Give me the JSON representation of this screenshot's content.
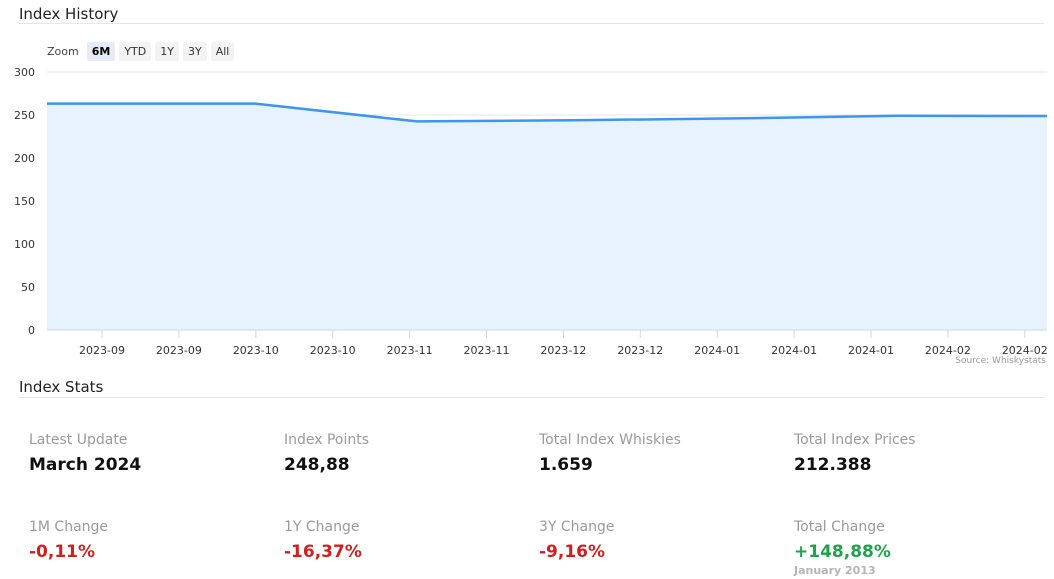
{
  "history": {
    "title": "Index History",
    "zoom_label": "Zoom",
    "zoom_buttons": [
      "6M",
      "YTD",
      "1Y",
      "3Y",
      "All"
    ],
    "zoom_active": "6M",
    "source": "Source: Whiskystats"
  },
  "chart_data": {
    "type": "area",
    "title": "",
    "xlabel": "",
    "ylabel": "",
    "ylim": [
      0,
      300
    ],
    "yticks": [
      0,
      50,
      100,
      150,
      200,
      250,
      300
    ],
    "grid": true,
    "line_color": "#3d95f0",
    "fill_color": "#e8f2fd",
    "x_tick_labels": [
      "2023-09",
      "2023-09",
      "2023-10",
      "2023-10",
      "2023-11",
      "2023-11",
      "2023-12",
      "2023-12",
      "2024-01",
      "2024-01",
      "2024-01",
      "2024-02",
      "2024-02"
    ],
    "x": [
      "2023-08-31",
      "2023-09-30",
      "2023-10-31",
      "2023-11-30",
      "2023-12-31",
      "2024-01-31",
      "2024-02-29"
    ],
    "values": [
      263.2,
      263.2,
      242.5,
      243.8,
      246.0,
      249.1,
      248.88
    ]
  },
  "stats": {
    "title": "Index Stats",
    "items": [
      {
        "label": "Latest Update",
        "value": "March 2024",
        "tone": ""
      },
      {
        "label": "Index Points",
        "value": "248,88",
        "tone": ""
      },
      {
        "label": "Total Index Whiskies",
        "value": "1.659",
        "tone": ""
      },
      {
        "label": "Total Index Prices",
        "value": "212.388",
        "tone": ""
      },
      {
        "label": "1M Change",
        "value": "-0,11%",
        "tone": "neg"
      },
      {
        "label": "1Y Change",
        "value": "-16,37%",
        "tone": "neg"
      },
      {
        "label": "3Y Change",
        "value": "-9,16%",
        "tone": "neg"
      },
      {
        "label": "Total Change",
        "value": "+148,88%",
        "tone": "pos",
        "sub": "January 2013"
      }
    ]
  }
}
